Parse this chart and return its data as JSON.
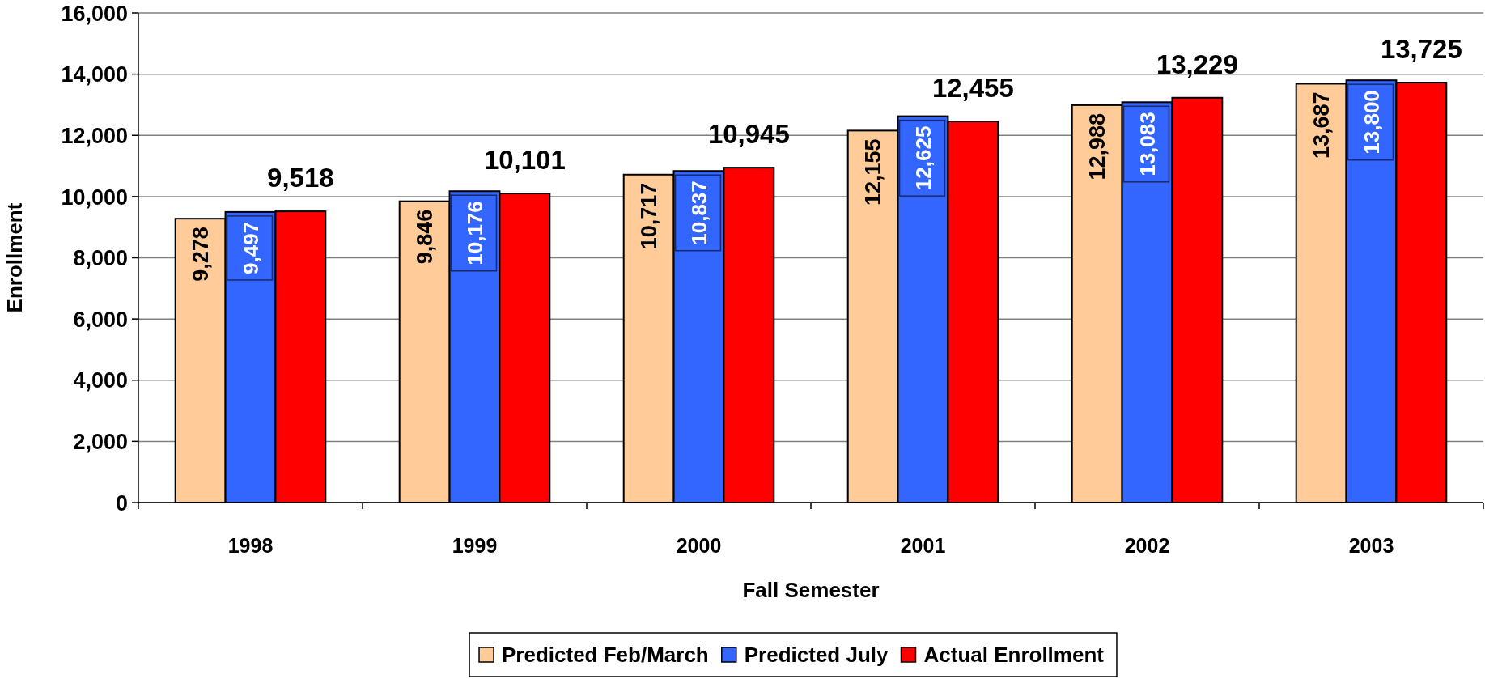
{
  "chart_data": {
    "type": "bar",
    "xlabel": "Fall Semester",
    "ylabel": "Enrollment",
    "categories": [
      "1998",
      "1999",
      "2000",
      "2001",
      "2002",
      "2003"
    ],
    "series": [
      {
        "name": "Predicted Feb/March",
        "color": "#ffcc99",
        "values": [
          9278,
          9846,
          10717,
          12155,
          12988,
          13687
        ],
        "value_labels": [
          "9,278",
          "9,846",
          "10,717",
          "12,155",
          "12,988",
          "13,687"
        ]
      },
      {
        "name": "Predicted July",
        "color": "#3366ff",
        "values": [
          9497,
          10176,
          10837,
          12625,
          13083,
          13800
        ],
        "value_labels": [
          "9,497",
          "10,176",
          "10,837",
          "12,625",
          "13,083",
          "13,800"
        ]
      },
      {
        "name": "Actual Enrollment",
        "color": "#ff0000",
        "values": [
          9518,
          10101,
          10945,
          12455,
          13229,
          13725
        ],
        "value_labels": [
          "9,518",
          "10,101",
          "10,945",
          "12,455",
          "13,229",
          "13,725"
        ]
      }
    ],
    "ylim": [
      0,
      16000
    ],
    "yticks": [
      0,
      {
        "value": 2000,
        "label": "2,000"
      },
      {
        "value": 4000,
        "label": "4,000"
      },
      {
        "value": 6000,
        "label": "6,000"
      },
      {
        "value": 8000,
        "label": "8,000"
      },
      {
        "value": 10000,
        "label": "10,000"
      },
      {
        "value": 12000,
        "label": "12,000"
      },
      {
        "value": 14000,
        "label": "14,000"
      },
      {
        "value": 16000,
        "label": "16,000"
      }
    ],
    "grid": "y",
    "legend": "bottom"
  }
}
